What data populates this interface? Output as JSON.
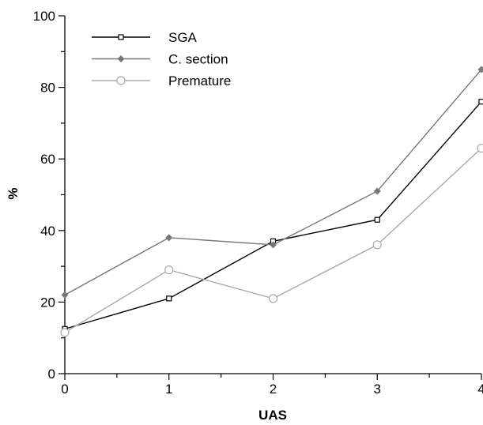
{
  "chart_data": {
    "type": "line",
    "title": "",
    "xlabel": "UAS",
    "ylabel": "%",
    "x": [
      0,
      1,
      2,
      3,
      4
    ],
    "xlim": [
      0,
      4
    ],
    "ylim": [
      0,
      100
    ],
    "xticks": [
      "0",
      "1",
      "2",
      "3",
      "4"
    ],
    "yticks": [
      "0",
      "20",
      "40",
      "60",
      "80",
      "100"
    ],
    "grid": false,
    "legend_position": "top-left",
    "series": [
      {
        "name": "SGA",
        "values": [
          12.5,
          21,
          37,
          43,
          76
        ],
        "color": "#000000",
        "marker": "open-square"
      },
      {
        "name": "C. section",
        "values": [
          22,
          38,
          36,
          51,
          85
        ],
        "color": "#777777",
        "marker": "filled-diamond"
      },
      {
        "name": "Premature",
        "values": [
          11.5,
          29,
          21,
          36,
          63
        ],
        "color": "#aaaaaa",
        "marker": "open-circle"
      }
    ]
  }
}
